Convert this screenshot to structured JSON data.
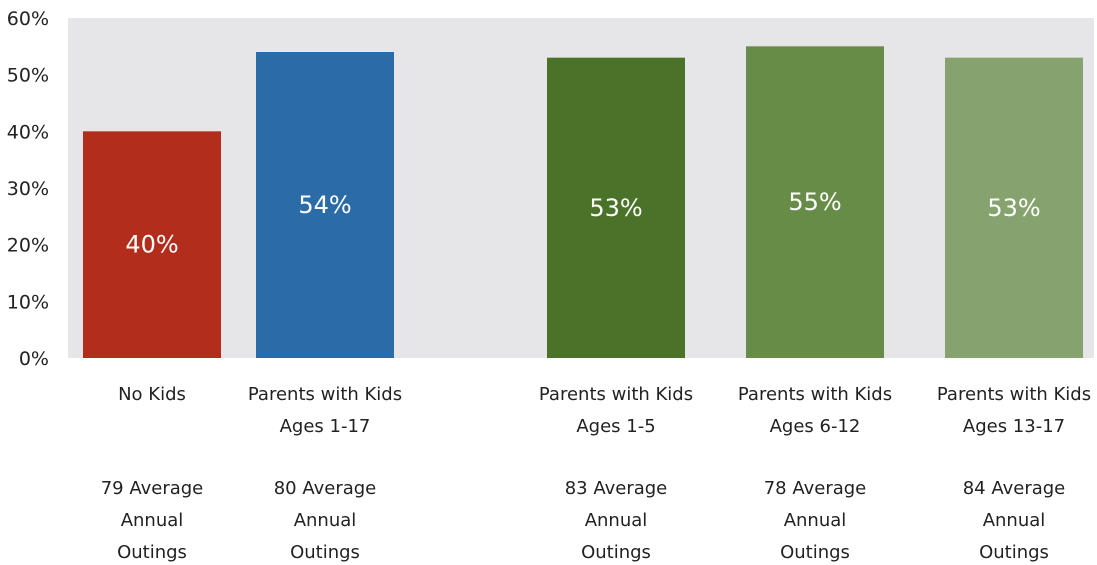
{
  "chart_data": {
    "type": "bar",
    "categories": [
      "No Kids",
      "Parents with Kids Ages 1-17",
      "Parents with Kids Ages 1-5",
      "Parents with Kids Ages 6-12",
      "Parents with Kids Ages 13-17"
    ],
    "category_lines": [
      [
        "No Kids"
      ],
      [
        "Parents with Kids",
        "Ages 1-17"
      ],
      [
        "Parents with Kids",
        "Ages 1-5"
      ],
      [
        "Parents with Kids",
        "Ages 6-12"
      ],
      [
        "Parents with Kids",
        "Ages 13-17"
      ]
    ],
    "values": [
      40,
      54,
      53,
      55,
      53
    ],
    "value_labels": [
      "40%",
      "54%",
      "53%",
      "55%",
      "53%"
    ],
    "sublabels": [
      [
        "79 Average",
        "Annual",
        "Outings"
      ],
      [
        "80 Average",
        "Annual",
        "Outings"
      ],
      [
        "83 Average",
        "Annual",
        "Outings"
      ],
      [
        "78 Average",
        "Annual",
        "Outings"
      ],
      [
        "84 Average",
        "Annual",
        "Outings"
      ]
    ],
    "colors": [
      "#b22d1c",
      "#2b6ca8",
      "#4a7329",
      "#668c47",
      "#86a26f"
    ],
    "title": "",
    "xlabel": "",
    "ylabel": "",
    "ylim": [
      0,
      60
    ],
    "yticks": [
      "0%",
      "10%",
      "20%",
      "30%",
      "40%",
      "50%",
      "60%"
    ],
    "grid": false,
    "legend": "none",
    "plot_background": "#e6e6e8"
  }
}
